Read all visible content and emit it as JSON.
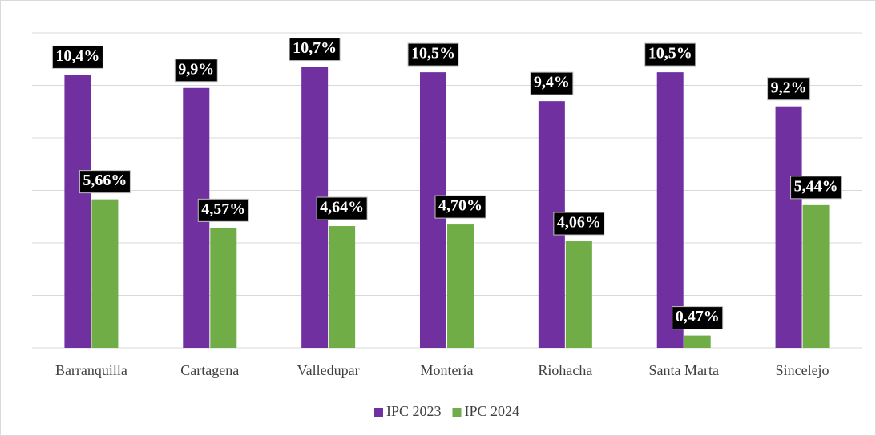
{
  "chart_data": {
    "type": "bar",
    "categories": [
      "Barranquilla",
      "Cartagena",
      "Valledupar",
      "Montería",
      "Riohacha",
      "Santa Marta",
      "Sincelejo"
    ],
    "series": [
      {
        "name": "IPC 2023",
        "color": "#7030a0",
        "values": [
          10.4,
          9.9,
          10.7,
          10.5,
          9.4,
          10.5,
          9.2
        ],
        "value_labels": [
          "10,4%",
          "9,9%",
          "10,7%",
          "10,5%",
          "9,4%",
          "10,5%",
          "9,2%"
        ]
      },
      {
        "name": "IPC 2024",
        "color": "#70ad47",
        "values": [
          5.66,
          4.57,
          4.64,
          4.7,
          4.06,
          0.47,
          5.44
        ],
        "value_labels": [
          "5,66%",
          "4,57%",
          "4,64%",
          "4,70%",
          "4,06%",
          "0,47%",
          "5,44%"
        ]
      }
    ],
    "ylim": [
      0,
      12
    ],
    "yticks": [
      0,
      2,
      4,
      6,
      8,
      10,
      12
    ],
    "grid": true,
    "legend": "bottom"
  }
}
